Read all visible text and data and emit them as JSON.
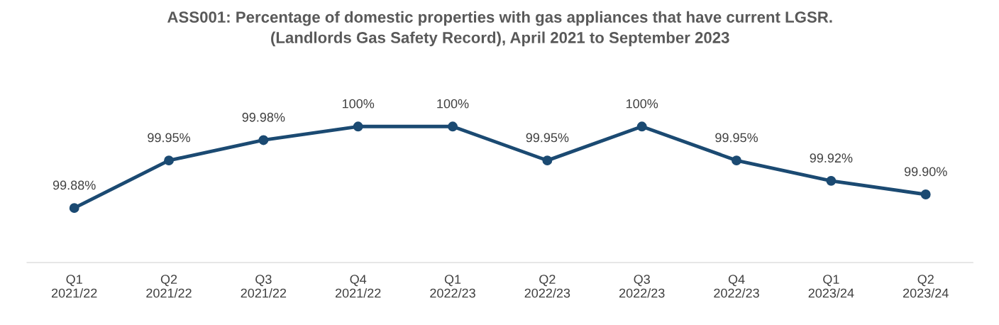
{
  "chart_data": {
    "type": "line",
    "title": "ASS001: Percentage of domestic properties with gas appliances that have current LGSR.\n(Landlords Gas Safety Record), April 2021 to September 2023",
    "categories": [
      "Q1\n2021/22",
      "Q2\n2021/22",
      "Q3\n2021/22",
      "Q4\n2021/22",
      "Q1\n2022/23",
      "Q2\n2022/23",
      "Q3\n2022/23",
      "Q4\n2022/23",
      "Q1\n2023/24",
      "Q2\n2023/24"
    ],
    "series": [
      {
        "color": "#1b4a72",
        "values": [
          99.88,
          99.95,
          99.98,
          100,
          100,
          99.95,
          100,
          99.95,
          99.92,
          99.9
        ],
        "value_labels": [
          "99.88%",
          "99.95%",
          "99.98%",
          "100%",
          "100%",
          "99.95%",
          "100%",
          "99.95%",
          "99.92%",
          "99.90%"
        ]
      }
    ],
    "tick_labels": "x",
    "marker": "circle",
    "line_style": "solid",
    "grid": false
  }
}
